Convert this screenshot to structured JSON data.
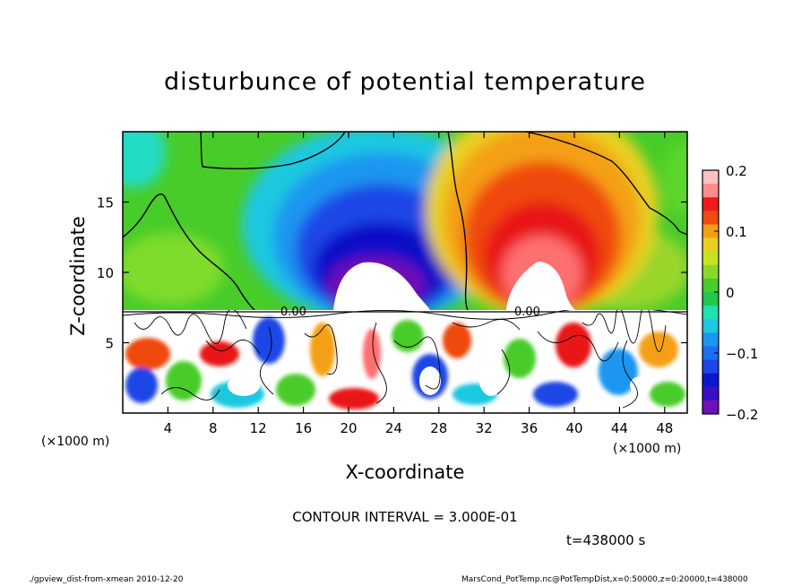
{
  "chart_data": {
    "type": "heatmap",
    "title": "disturbunce of potential temperature",
    "xlabel": "X-coordinate",
    "ylabel": "Z-coordinate",
    "x_unit": "(×1000 m)",
    "y_unit": "(×1000 m)",
    "xlim": [
      0,
      50
    ],
    "ylim": [
      0,
      20
    ],
    "x_ticks": [
      "4",
      "8",
      "12",
      "16",
      "20",
      "24",
      "28",
      "32",
      "36",
      "40",
      "44",
      "48"
    ],
    "y_ticks": [
      "5",
      "10",
      "15"
    ],
    "colorbar": {
      "ticks": [
        "0.2",
        "0.1",
        "0",
        "−0.1",
        "−0.2"
      ],
      "range": [
        -0.2,
        0.2
      ]
    },
    "features": [
      {
        "name": "negative anomaly (upper layer)",
        "x_center": 21,
        "z_center": 10,
        "value": -0.2
      },
      {
        "name": "positive anomaly (upper layer)",
        "x_center": 38,
        "z_center": 10,
        "value": 0.2
      }
    ],
    "contour_label": "0.00",
    "contour_interval_text": "CONTOUR INTERVAL = 3.000E-01",
    "time_text": "t=438000 s"
  },
  "footer": {
    "left": "./gpview_dist-from-xmean  2010-12-20",
    "right": "MarsCond_PotTemp.nc@PotTempDist,x=0:50000,z=0:20000,t=438000"
  }
}
